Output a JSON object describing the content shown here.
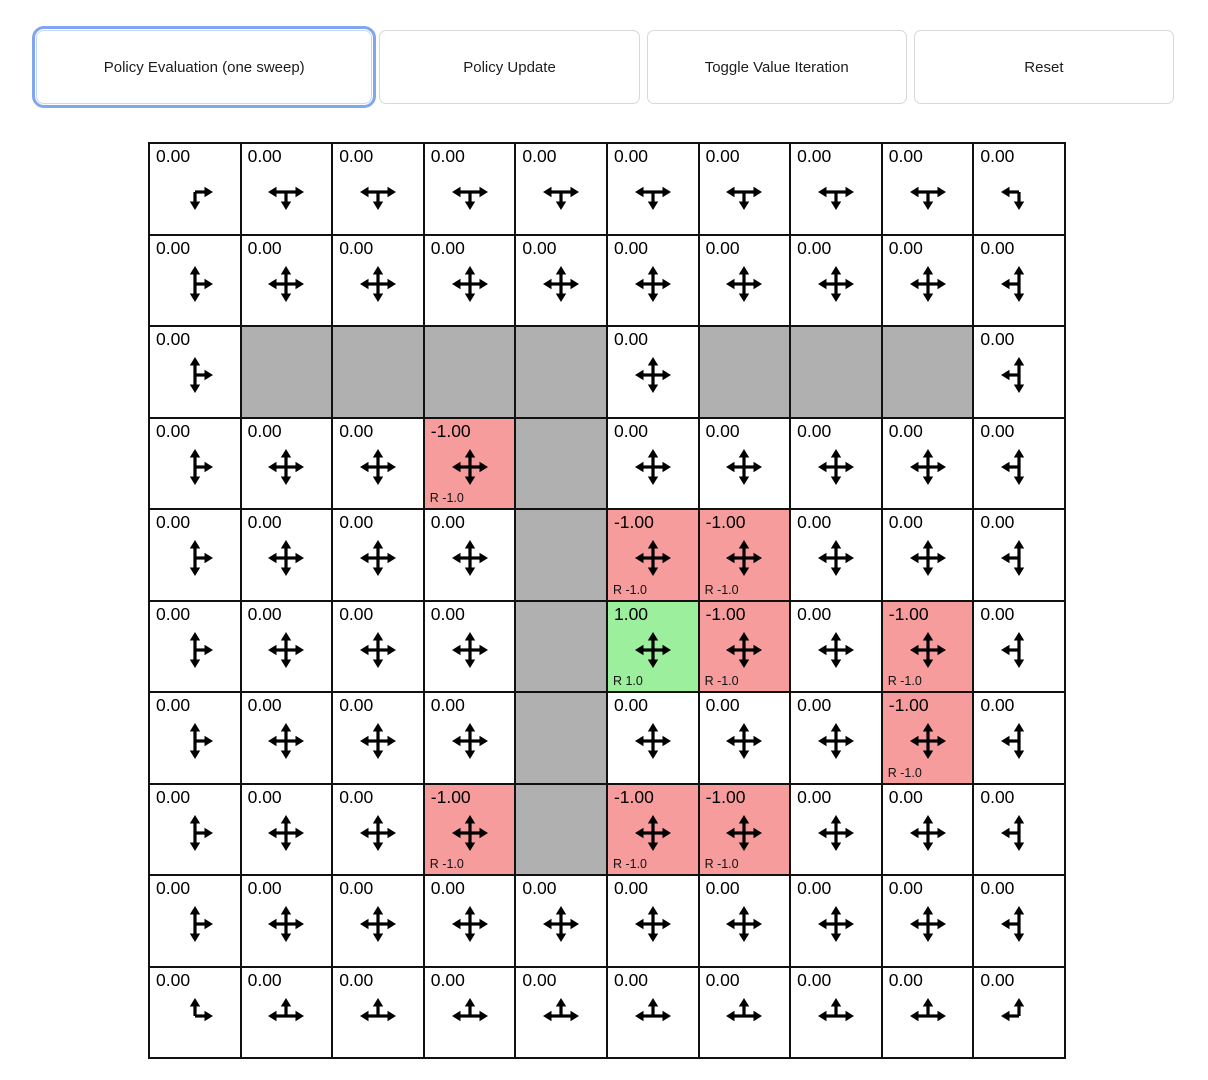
{
  "toolbar": {
    "buttons": [
      {
        "label": "Policy Evaluation (one sweep)",
        "active": true
      },
      {
        "label": "Policy Update",
        "active": false
      },
      {
        "label": "Toggle Value Iteration",
        "active": false
      },
      {
        "label": "Reset",
        "active": false
      }
    ],
    "accent_focus_color": "#7fa6ee"
  },
  "grid": {
    "rows": 10,
    "cols": 10,
    "colors": {
      "wall": "#b0b0b0",
      "negative_reward": "#f69c9c",
      "positive_reward": "#9cef9c",
      "default": "#ffffff",
      "border": "#111111"
    },
    "arrow_key": {
      "u": "up",
      "d": "down",
      "l": "left",
      "r": "right"
    },
    "cells": [
      [
        {
          "value": "0.00",
          "arrows": "dr",
          "type": "normal"
        },
        {
          "value": "0.00",
          "arrows": "dlr",
          "type": "normal"
        },
        {
          "value": "0.00",
          "arrows": "dlr",
          "type": "normal"
        },
        {
          "value": "0.00",
          "arrows": "dlr",
          "type": "normal"
        },
        {
          "value": "0.00",
          "arrows": "dlr",
          "type": "normal"
        },
        {
          "value": "0.00",
          "arrows": "dlr",
          "type": "normal"
        },
        {
          "value": "0.00",
          "arrows": "dlr",
          "type": "normal"
        },
        {
          "value": "0.00",
          "arrows": "dlr",
          "type": "normal"
        },
        {
          "value": "0.00",
          "arrows": "dlr",
          "type": "normal"
        },
        {
          "value": "0.00",
          "arrows": "dl",
          "type": "normal"
        }
      ],
      [
        {
          "value": "0.00",
          "arrows": "udr",
          "type": "normal"
        },
        {
          "value": "0.00",
          "arrows": "udlr",
          "type": "normal"
        },
        {
          "value": "0.00",
          "arrows": "udlr",
          "type": "normal"
        },
        {
          "value": "0.00",
          "arrows": "udlr",
          "type": "normal"
        },
        {
          "value": "0.00",
          "arrows": "udlr",
          "type": "normal"
        },
        {
          "value": "0.00",
          "arrows": "udlr",
          "type": "normal"
        },
        {
          "value": "0.00",
          "arrows": "udlr",
          "type": "normal"
        },
        {
          "value": "0.00",
          "arrows": "udlr",
          "type": "normal"
        },
        {
          "value": "0.00",
          "arrows": "udlr",
          "type": "normal"
        },
        {
          "value": "0.00",
          "arrows": "udl",
          "type": "normal"
        }
      ],
      [
        {
          "value": "0.00",
          "arrows": "udr",
          "type": "normal"
        },
        {
          "type": "wall"
        },
        {
          "type": "wall"
        },
        {
          "type": "wall"
        },
        {
          "type": "wall"
        },
        {
          "value": "0.00",
          "arrows": "udlr",
          "type": "normal"
        },
        {
          "type": "wall"
        },
        {
          "type": "wall"
        },
        {
          "type": "wall"
        },
        {
          "value": "0.00",
          "arrows": "udl",
          "type": "normal"
        }
      ],
      [
        {
          "value": "0.00",
          "arrows": "udr",
          "type": "normal"
        },
        {
          "value": "0.00",
          "arrows": "udlr",
          "type": "normal"
        },
        {
          "value": "0.00",
          "arrows": "udlr",
          "type": "normal"
        },
        {
          "value": "-1.00",
          "arrows": "udlr",
          "type": "neg",
          "reward": "R -1.0"
        },
        {
          "type": "wall"
        },
        {
          "value": "0.00",
          "arrows": "udlr",
          "type": "normal"
        },
        {
          "value": "0.00",
          "arrows": "udlr",
          "type": "normal"
        },
        {
          "value": "0.00",
          "arrows": "udlr",
          "type": "normal"
        },
        {
          "value": "0.00",
          "arrows": "udlr",
          "type": "normal"
        },
        {
          "value": "0.00",
          "arrows": "udl",
          "type": "normal"
        }
      ],
      [
        {
          "value": "0.00",
          "arrows": "udr",
          "type": "normal"
        },
        {
          "value": "0.00",
          "arrows": "udlr",
          "type": "normal"
        },
        {
          "value": "0.00",
          "arrows": "udlr",
          "type": "normal"
        },
        {
          "value": "0.00",
          "arrows": "udlr",
          "type": "normal"
        },
        {
          "type": "wall"
        },
        {
          "value": "-1.00",
          "arrows": "udlr",
          "type": "neg",
          "reward": "R -1.0"
        },
        {
          "value": "-1.00",
          "arrows": "udlr",
          "type": "neg",
          "reward": "R -1.0"
        },
        {
          "value": "0.00",
          "arrows": "udlr",
          "type": "normal"
        },
        {
          "value": "0.00",
          "arrows": "udlr",
          "type": "normal"
        },
        {
          "value": "0.00",
          "arrows": "udl",
          "type": "normal"
        }
      ],
      [
        {
          "value": "0.00",
          "arrows": "udr",
          "type": "normal"
        },
        {
          "value": "0.00",
          "arrows": "udlr",
          "type": "normal"
        },
        {
          "value": "0.00",
          "arrows": "udlr",
          "type": "normal"
        },
        {
          "value": "0.00",
          "arrows": "udlr",
          "type": "normal"
        },
        {
          "type": "wall"
        },
        {
          "value": "1.00",
          "arrows": "udlr",
          "type": "pos",
          "reward": "R 1.0"
        },
        {
          "value": "-1.00",
          "arrows": "udlr",
          "type": "neg",
          "reward": "R -1.0"
        },
        {
          "value": "0.00",
          "arrows": "udlr",
          "type": "normal"
        },
        {
          "value": "-1.00",
          "arrows": "udlr",
          "type": "neg",
          "reward": "R -1.0"
        },
        {
          "value": "0.00",
          "arrows": "udl",
          "type": "normal"
        }
      ],
      [
        {
          "value": "0.00",
          "arrows": "udr",
          "type": "normal"
        },
        {
          "value": "0.00",
          "arrows": "udlr",
          "type": "normal"
        },
        {
          "value": "0.00",
          "arrows": "udlr",
          "type": "normal"
        },
        {
          "value": "0.00",
          "arrows": "udlr",
          "type": "normal"
        },
        {
          "type": "wall"
        },
        {
          "value": "0.00",
          "arrows": "udlr",
          "type": "normal"
        },
        {
          "value": "0.00",
          "arrows": "udlr",
          "type": "normal"
        },
        {
          "value": "0.00",
          "arrows": "udlr",
          "type": "normal"
        },
        {
          "value": "-1.00",
          "arrows": "udlr",
          "type": "neg",
          "reward": "R -1.0"
        },
        {
          "value": "0.00",
          "arrows": "udl",
          "type": "normal"
        }
      ],
      [
        {
          "value": "0.00",
          "arrows": "udr",
          "type": "normal"
        },
        {
          "value": "0.00",
          "arrows": "udlr",
          "type": "normal"
        },
        {
          "value": "0.00",
          "arrows": "udlr",
          "type": "normal"
        },
        {
          "value": "-1.00",
          "arrows": "udlr",
          "type": "neg",
          "reward": "R -1.0"
        },
        {
          "type": "wall"
        },
        {
          "value": "-1.00",
          "arrows": "udlr",
          "type": "neg",
          "reward": "R -1.0"
        },
        {
          "value": "-1.00",
          "arrows": "udlr",
          "type": "neg",
          "reward": "R -1.0"
        },
        {
          "value": "0.00",
          "arrows": "udlr",
          "type": "normal"
        },
        {
          "value": "0.00",
          "arrows": "udlr",
          "type": "normal"
        },
        {
          "value": "0.00",
          "arrows": "udl",
          "type": "normal"
        }
      ],
      [
        {
          "value": "0.00",
          "arrows": "udr",
          "type": "normal"
        },
        {
          "value": "0.00",
          "arrows": "udlr",
          "type": "normal"
        },
        {
          "value": "0.00",
          "arrows": "udlr",
          "type": "normal"
        },
        {
          "value": "0.00",
          "arrows": "udlr",
          "type": "normal"
        },
        {
          "value": "0.00",
          "arrows": "udlr",
          "type": "normal"
        },
        {
          "value": "0.00",
          "arrows": "udlr",
          "type": "normal"
        },
        {
          "value": "0.00",
          "arrows": "udlr",
          "type": "normal"
        },
        {
          "value": "0.00",
          "arrows": "udlr",
          "type": "normal"
        },
        {
          "value": "0.00",
          "arrows": "udlr",
          "type": "normal"
        },
        {
          "value": "0.00",
          "arrows": "udl",
          "type": "normal"
        }
      ],
      [
        {
          "value": "0.00",
          "arrows": "ur",
          "type": "normal"
        },
        {
          "value": "0.00",
          "arrows": "ulr",
          "type": "normal"
        },
        {
          "value": "0.00",
          "arrows": "ulr",
          "type": "normal"
        },
        {
          "value": "0.00",
          "arrows": "ulr",
          "type": "normal"
        },
        {
          "value": "0.00",
          "arrows": "ulr",
          "type": "normal"
        },
        {
          "value": "0.00",
          "arrows": "ulr",
          "type": "normal"
        },
        {
          "value": "0.00",
          "arrows": "ulr",
          "type": "normal"
        },
        {
          "value": "0.00",
          "arrows": "ulr",
          "type": "normal"
        },
        {
          "value": "0.00",
          "arrows": "ulr",
          "type": "normal"
        },
        {
          "value": "0.00",
          "arrows": "ul",
          "type": "normal"
        }
      ]
    ]
  }
}
